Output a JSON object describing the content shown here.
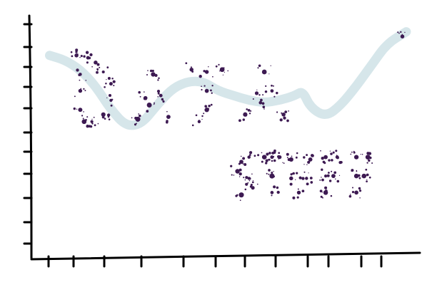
{
  "chart_data": {
    "type": "scatter",
    "title": "",
    "xlabel": "",
    "ylabel": "",
    "grid": false,
    "legend": "none",
    "x_ticks": 14,
    "y_ticks": 11,
    "word_text": "DATA",
    "word2_text": "STUFF",
    "curve": {
      "color": "#d6e6ea",
      "points": [
        [
          0.04,
          0.85
        ],
        [
          0.08,
          0.83
        ],
        [
          0.12,
          0.79
        ],
        [
          0.16,
          0.72
        ],
        [
          0.2,
          0.62
        ],
        [
          0.24,
          0.55
        ],
        [
          0.28,
          0.56
        ],
        [
          0.32,
          0.64
        ],
        [
          0.36,
          0.71
        ],
        [
          0.4,
          0.74
        ],
        [
          0.44,
          0.74
        ],
        [
          0.48,
          0.7
        ],
        [
          0.52,
          0.68
        ],
        [
          0.56,
          0.66
        ],
        [
          0.6,
          0.65
        ],
        [
          0.64,
          0.66
        ],
        [
          0.68,
          0.68
        ],
        [
          0.7,
          0.7
        ],
        [
          0.72,
          0.63
        ],
        [
          0.76,
          0.59
        ],
        [
          0.8,
          0.64
        ],
        [
          0.84,
          0.72
        ],
        [
          0.88,
          0.81
        ],
        [
          0.92,
          0.9
        ],
        [
          0.97,
          0.95
        ]
      ]
    },
    "series": [
      {
        "color": "#3d1a52",
        "points": [
          [
            0.11,
            0.85
          ],
          [
            0.12,
            0.77
          ],
          [
            0.12,
            0.7
          ],
          [
            0.12,
            0.62
          ],
          [
            0.13,
            0.57
          ],
          [
            0.14,
            0.84
          ],
          [
            0.16,
            0.82
          ],
          [
            0.18,
            0.78
          ],
          [
            0.2,
            0.73
          ],
          [
            0.2,
            0.66
          ],
          [
            0.18,
            0.6
          ],
          [
            0.15,
            0.57
          ],
          [
            0.27,
            0.58
          ],
          [
            0.29,
            0.67
          ],
          [
            0.31,
            0.77
          ],
          [
            0.33,
            0.68
          ],
          [
            0.35,
            0.59
          ],
          [
            0.3,
            0.64
          ],
          [
            0.41,
            0.79
          ],
          [
            0.45,
            0.78
          ],
          [
            0.49,
            0.79
          ],
          [
            0.45,
            0.7
          ],
          [
            0.45,
            0.62
          ],
          [
            0.43,
            0.57
          ],
          [
            0.55,
            0.6
          ],
          [
            0.58,
            0.69
          ],
          [
            0.6,
            0.78
          ],
          [
            0.62,
            0.7
          ],
          [
            0.65,
            0.6
          ],
          [
            0.59,
            0.65
          ],
          [
            0.96,
            0.93
          ]
        ]
      },
      {
        "color": "#3d1a52",
        "points": [
          [
            0.56,
            0.42
          ],
          [
            0.54,
            0.4
          ],
          [
            0.53,
            0.36
          ],
          [
            0.56,
            0.33
          ],
          [
            0.57,
            0.29
          ],
          [
            0.54,
            0.26
          ],
          [
            0.6,
            0.42
          ],
          [
            0.62,
            0.42
          ],
          [
            0.64,
            0.42
          ],
          [
            0.62,
            0.34
          ],
          [
            0.62,
            0.27
          ],
          [
            0.67,
            0.41
          ],
          [
            0.67,
            0.33
          ],
          [
            0.69,
            0.27
          ],
          [
            0.71,
            0.33
          ],
          [
            0.72,
            0.41
          ],
          [
            0.76,
            0.42
          ],
          [
            0.79,
            0.42
          ],
          [
            0.76,
            0.34
          ],
          [
            0.78,
            0.34
          ],
          [
            0.76,
            0.27
          ],
          [
            0.84,
            0.42
          ],
          [
            0.87,
            0.42
          ],
          [
            0.84,
            0.34
          ],
          [
            0.86,
            0.34
          ],
          [
            0.84,
            0.27
          ]
        ]
      }
    ]
  }
}
